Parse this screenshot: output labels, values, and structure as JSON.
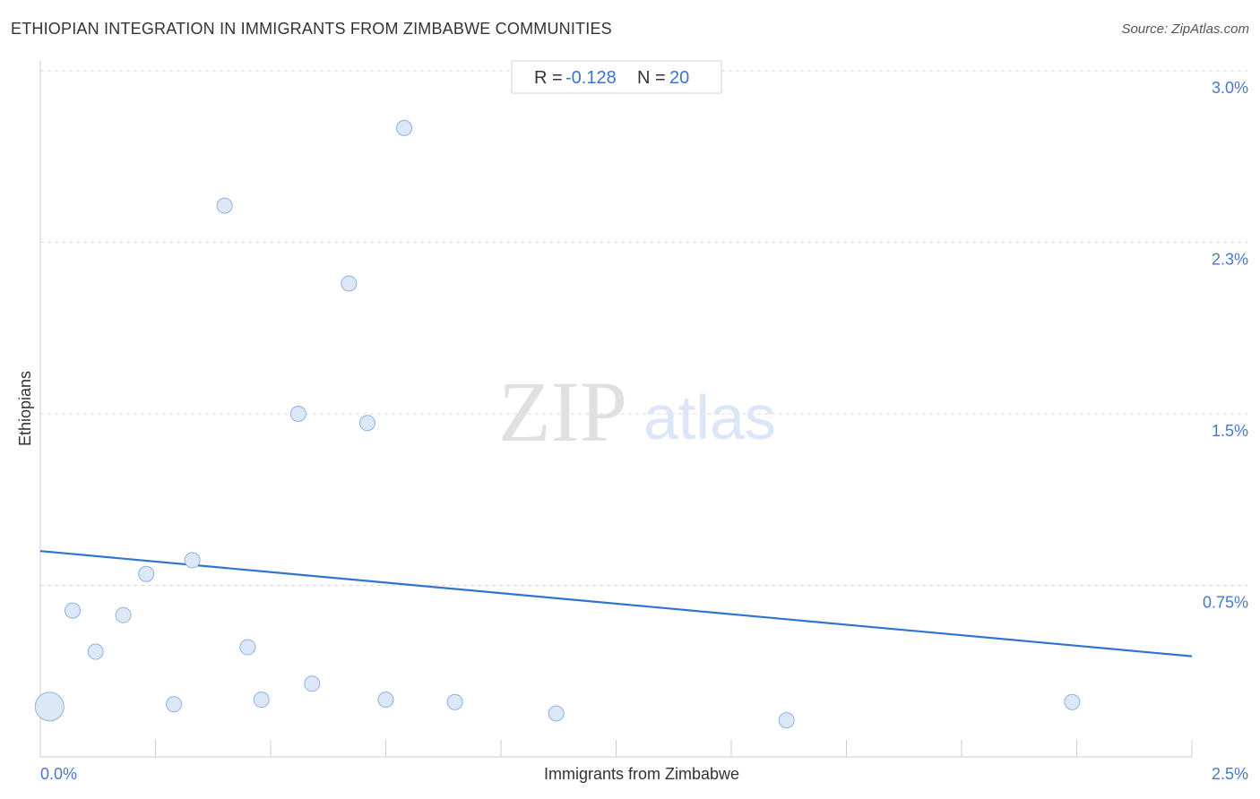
{
  "header": {
    "title": "ETHIOPIAN INTEGRATION IN IMMIGRANTS FROM ZIMBABWE COMMUNITIES",
    "source": "Source: ZipAtlas.com"
  },
  "stats": {
    "r_label": "R =",
    "r_value": "-0.128",
    "n_label": "N =",
    "n_value": "20"
  },
  "watermark": {
    "zip": "ZIP",
    "atlas": "atlas"
  },
  "colors": {
    "point_fill": "#dce8f8",
    "point_stroke": "#8fb1e0",
    "trend_line": "#2f74d0",
    "tick_label": "#4a78c8",
    "grid": "#d8d8d8"
  },
  "chart_data": {
    "type": "scatter",
    "xlabel": "Immigrants from Zimbabwe",
    "ylabel": "Ethiopians",
    "xlim": [
      0,
      2.5
    ],
    "ylim": [
      0,
      3.0
    ],
    "x_tick_labels": [
      {
        "value": 0.0,
        "label": "0.0%"
      },
      {
        "value": 2.5,
        "label": "2.5%"
      }
    ],
    "y_tick_labels": [
      {
        "value": 3.0,
        "label": "3.0%"
      },
      {
        "value": 2.25,
        "label": "2.3%"
      },
      {
        "value": 1.5,
        "label": "1.5%"
      },
      {
        "value": 0.75,
        "label": "0.75%"
      }
    ],
    "grid": {
      "horizontal": true,
      "vertical": false
    },
    "points": [
      {
        "x": 0.02,
        "y": 0.22,
        "size": "large"
      },
      {
        "x": 0.07,
        "y": 0.64
      },
      {
        "x": 0.12,
        "y": 0.46
      },
      {
        "x": 0.18,
        "y": 0.62
      },
      {
        "x": 0.23,
        "y": 0.8
      },
      {
        "x": 0.29,
        "y": 0.23
      },
      {
        "x": 0.33,
        "y": 0.86
      },
      {
        "x": 0.4,
        "y": 2.41
      },
      {
        "x": 0.45,
        "y": 0.48
      },
      {
        "x": 0.48,
        "y": 0.25
      },
      {
        "x": 0.56,
        "y": 1.5
      },
      {
        "x": 0.59,
        "y": 0.32
      },
      {
        "x": 0.67,
        "y": 2.07
      },
      {
        "x": 0.71,
        "y": 1.46
      },
      {
        "x": 0.75,
        "y": 0.25
      },
      {
        "x": 0.79,
        "y": 2.75
      },
      {
        "x": 0.9,
        "y": 0.24
      },
      {
        "x": 1.12,
        "y": 0.19
      },
      {
        "x": 1.62,
        "y": 0.16
      },
      {
        "x": 2.24,
        "y": 0.24
      }
    ],
    "trend_line": {
      "x": [
        0.0,
        2.5
      ],
      "y": [
        0.9,
        0.44
      ]
    }
  }
}
